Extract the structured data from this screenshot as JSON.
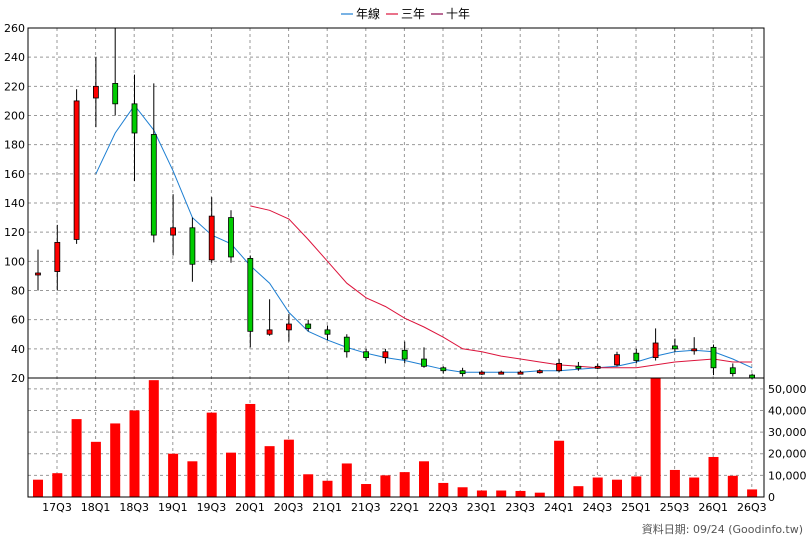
{
  "legend": [
    {
      "label": "年線",
      "color": "#1e7fd2"
    },
    {
      "label": "三年",
      "color": "#dc143c"
    },
    {
      "label": "十年",
      "color": "#8b0a50"
    }
  ],
  "footer_note": "資料日期: 09/24  (Goodinfo.tw)",
  "chart_data": {
    "type": "candlestick",
    "price_axis": {
      "min": 20,
      "max": 260,
      "ticks": [
        20,
        40,
        60,
        80,
        100,
        120,
        140,
        160,
        180,
        200,
        220,
        240,
        260
      ]
    },
    "volume_axis": {
      "min": 0,
      "max": 55000,
      "ticks": [
        0,
        10000,
        20000,
        30000,
        40000,
        50000
      ],
      "tick_labels": [
        "0",
        "10,000",
        "20,000",
        "30,000",
        "40,000",
        "50,000"
      ]
    },
    "x_labels": [
      "17Q3",
      "18Q1",
      "18Q3",
      "19Q1",
      "19Q3",
      "20Q1",
      "20Q3",
      "21Q1",
      "21Q3",
      "22Q1",
      "22Q3",
      "23Q1",
      "23Q3",
      "24Q1",
      "24Q3",
      "25Q1",
      "25Q3",
      "26Q1",
      "26Q3"
    ],
    "candles": [
      {
        "o": 92,
        "h": 108,
        "l": 80,
        "c": 92
      },
      {
        "o": 93,
        "h": 125,
        "l": 80,
        "c": 113
      },
      {
        "o": 115,
        "h": 218,
        "l": 112,
        "c": 210
      },
      {
        "o": 212,
        "h": 240,
        "l": 192,
        "c": 220
      },
      {
        "o": 222,
        "h": 260,
        "l": 200,
        "c": 208
      },
      {
        "o": 208,
        "h": 228,
        "l": 155,
        "c": 188
      },
      {
        "o": 187,
        "h": 222,
        "l": 113,
        "c": 118
      },
      {
        "o": 118,
        "h": 146,
        "l": 104,
        "c": 123
      },
      {
        "o": 123,
        "h": 130,
        "l": 86,
        "c": 98
      },
      {
        "o": 101,
        "h": 144,
        "l": 99,
        "c": 131
      },
      {
        "o": 130,
        "h": 135,
        "l": 99,
        "c": 103
      },
      {
        "o": 102,
        "h": 104,
        "l": 41,
        "c": 52
      },
      {
        "o": 50,
        "h": 74,
        "l": 49,
        "c": 53
      },
      {
        "o": 53,
        "h": 64,
        "l": 45,
        "c": 57
      },
      {
        "o": 57,
        "h": 60,
        "l": 52,
        "c": 54
      },
      {
        "o": 53,
        "h": 56,
        "l": 46,
        "c": 50
      },
      {
        "o": 48,
        "h": 50,
        "l": 34,
        "c": 38
      },
      {
        "o": 38,
        "h": 40,
        "l": 32,
        "c": 34
      },
      {
        "o": 34,
        "h": 40,
        "l": 30,
        "c": 38
      },
      {
        "o": 39,
        "h": 45,
        "l": 30,
        "c": 33
      },
      {
        "o": 33,
        "h": 41,
        "l": 27,
        "c": 28
      },
      {
        "o": 27,
        "h": 28,
        "l": 23,
        "c": 25
      },
      {
        "o": 25,
        "h": 27,
        "l": 21,
        "c": 23
      },
      {
        "o": 23,
        "h": 25,
        "l": 22,
        "c": 24
      },
      {
        "o": 24,
        "h": 25,
        "l": 23,
        "c": 24
      },
      {
        "o": 24,
        "h": 25,
        "l": 23,
        "c": 24
      },
      {
        "o": 24,
        "h": 26,
        "l": 23,
        "c": 25
      },
      {
        "o": 25,
        "h": 33,
        "l": 24,
        "c": 30
      },
      {
        "o": 28,
        "h": 31,
        "l": 25,
        "c": 27
      },
      {
        "o": 27,
        "h": 30,
        "l": 26,
        "c": 28
      },
      {
        "o": 29,
        "h": 38,
        "l": 28,
        "c": 36
      },
      {
        "o": 37,
        "h": 40,
        "l": 30,
        "c": 32
      },
      {
        "o": 34,
        "h": 54,
        "l": 32,
        "c": 44
      },
      {
        "o": 42,
        "h": 47,
        "l": 38,
        "c": 40
      },
      {
        "o": 40,
        "h": 48,
        "l": 36,
        "c": 40
      },
      {
        "o": 41,
        "h": 43,
        "l": 22,
        "c": 27
      },
      {
        "o": 27,
        "h": 30,
        "l": 21,
        "c": 23
      },
      {
        "o": 22,
        "h": 23,
        "l": 19,
        "c": 20
      }
    ],
    "volumes": [
      8000,
      11000,
      36000,
      25500,
      34000,
      40000,
      54000,
      20000,
      16500,
      39000,
      20500,
      43000,
      23500,
      26500,
      10500,
      7500,
      15500,
      6000,
      10000,
      11500,
      16500,
      6500,
      4500,
      3000,
      3000,
      2800,
      2000,
      26000,
      5000,
      9000,
      8000,
      9500,
      55000,
      12500,
      9000,
      18500,
      9800,
      3500
    ],
    "ma_year": [
      null,
      null,
      null,
      160,
      188,
      207,
      190,
      162,
      130,
      118,
      112,
      97,
      85,
      65,
      52,
      46,
      41,
      37,
      34,
      32,
      29,
      26,
      24,
      24,
      24,
      24,
      25,
      25,
      26,
      27,
      28,
      31,
      35,
      38,
      39,
      38,
      33,
      27
    ],
    "ma_3year": [
      null,
      null,
      null,
      null,
      null,
      null,
      null,
      null,
      null,
      null,
      null,
      138,
      135,
      129,
      115,
      100,
      85,
      75,
      69,
      61,
      55,
      48,
      40,
      38,
      35,
      33,
      31,
      29,
      28,
      27,
      27,
      27,
      29,
      31,
      32,
      33,
      31,
      31
    ],
    "ma_10year": []
  }
}
